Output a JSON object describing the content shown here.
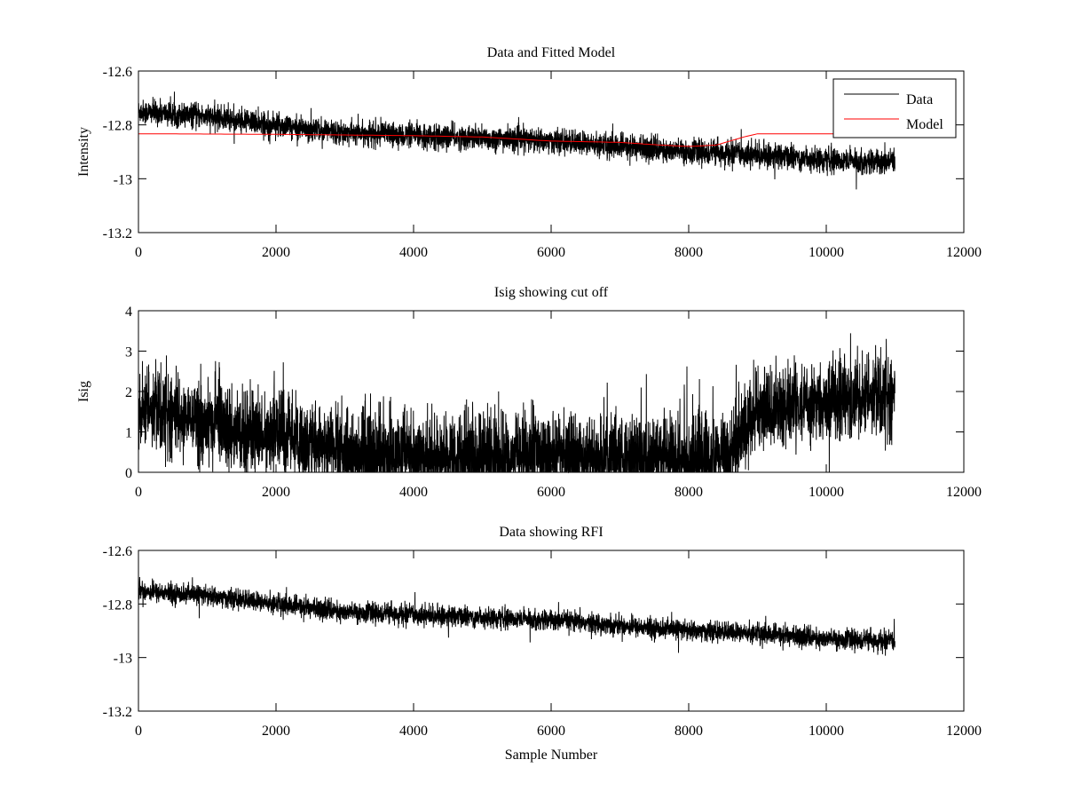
{
  "chart_data": [
    {
      "type": "line",
      "title": "Data and Fitted Model",
      "xlabel": "",
      "ylabel": "Intensity",
      "xlim": [
        0,
        12000
      ],
      "ylim": [
        -13.2,
        -12.6
      ],
      "xticks": [
        0,
        2000,
        4000,
        6000,
        8000,
        10000,
        12000
      ],
      "yticks": [
        -12.6,
        -12.8,
        -13,
        -13.2
      ],
      "legend": {
        "placement": "top-right",
        "entries": [
          "Data",
          "Model"
        ]
      },
      "series": [
        {
          "name": "Data",
          "color": "#000000",
          "n_samples": 11000,
          "trend_x": [
            0,
            1000,
            2000,
            3000,
            4000,
            5000,
            6000,
            7000,
            8000,
            9000,
            10000,
            11000
          ],
          "trend_y": [
            -12.75,
            -12.77,
            -12.8,
            -12.83,
            -12.84,
            -12.85,
            -12.86,
            -12.88,
            -12.9,
            -12.91,
            -12.93,
            -12.94
          ],
          "noise_sd": 0.022
        },
        {
          "name": "Model",
          "color": "#ff0000",
          "x": [
            0,
            2000,
            4000,
            5000,
            6000,
            7000,
            7600,
            8000,
            8400,
            8800,
            9000,
            10000,
            11000
          ],
          "y": [
            -12.833,
            -12.835,
            -12.84,
            -12.845,
            -12.86,
            -12.865,
            -12.875,
            -12.88,
            -12.875,
            -12.845,
            -12.833,
            -12.833,
            -12.833
          ]
        }
      ]
    },
    {
      "type": "line",
      "title": "Isig showing cut off",
      "xlabel": "",
      "ylabel": "Isig",
      "xlim": [
        0,
        12000
      ],
      "ylim": [
        0,
        4
      ],
      "xticks": [
        0,
        2000,
        4000,
        6000,
        8000,
        10000,
        12000
      ],
      "yticks": [
        0,
        1,
        2,
        3,
        4
      ],
      "series": [
        {
          "name": "Isig",
          "color": "#000000",
          "n_samples": 11000,
          "trend_x": [
            0,
            1000,
            2000,
            2800,
            3000,
            5000,
            8000,
            8600,
            9000,
            10000,
            11000
          ],
          "trend_y": [
            1.5,
            1.2,
            0.8,
            0.6,
            0.35,
            0.35,
            0.35,
            0.4,
            1.5,
            1.7,
            1.8
          ],
          "noise_sd": 0.55
        }
      ]
    },
    {
      "type": "line",
      "title": "Data showing RFI",
      "xlabel": "Sample Number",
      "ylabel": "",
      "xlim": [
        0,
        12000
      ],
      "ylim": [
        -13.2,
        -12.6
      ],
      "xticks": [
        0,
        2000,
        4000,
        6000,
        8000,
        10000,
        12000
      ],
      "yticks": [
        -12.6,
        -12.8,
        -13,
        -13.2
      ],
      "series": [
        {
          "name": "Data",
          "color": "#000000",
          "n_samples": 11000,
          "trend_x": [
            0,
            1000,
            2000,
            3000,
            4000,
            5000,
            6000,
            7000,
            8000,
            9000,
            10000,
            11000
          ],
          "trend_y": [
            -12.75,
            -12.77,
            -12.8,
            -12.83,
            -12.84,
            -12.85,
            -12.86,
            -12.88,
            -12.9,
            -12.91,
            -12.93,
            -12.94
          ],
          "noise_sd": 0.018
        }
      ]
    }
  ]
}
